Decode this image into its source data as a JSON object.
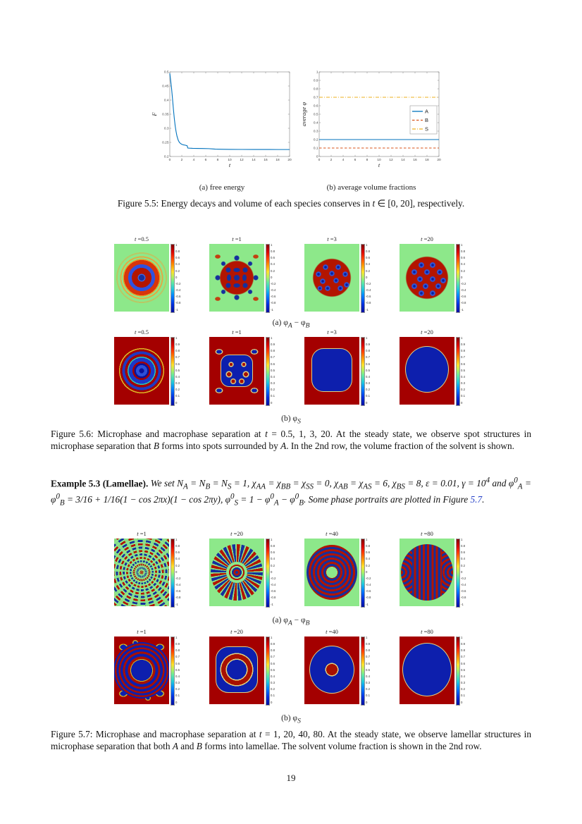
{
  "figure_5_5": {
    "subcaption_a": "(a)  free energy",
    "subcaption_b": "(b)  average volume fractions",
    "caption_html": "Figure 5.5: Energy decays and volume of each species conserves in <i>t</i> ∈ [0, 20], respectively."
  },
  "chart_data": [
    {
      "type": "line",
      "xlabel": "t",
      "ylabel": "F",
      "xlim": [
        0,
        20
      ],
      "ylim": [
        0.2,
        0.5
      ],
      "xticks": [
        0,
        2,
        4,
        6,
        8,
        10,
        12,
        14,
        16,
        18,
        20
      ],
      "yticks": [
        0.2,
        0.25,
        0.3,
        0.35,
        0.4,
        0.45,
        0.5
      ],
      "grid": false,
      "legend": null,
      "series": [
        {
          "name": "F",
          "color": "#0072BD",
          "dash": "solid",
          "points": [
            [
              0,
              0.495
            ],
            [
              0.15,
              0.468
            ],
            [
              0.3,
              0.44
            ],
            [
              0.45,
              0.405
            ],
            [
              0.6,
              0.368
            ],
            [
              0.75,
              0.335
            ],
            [
              0.9,
              0.308
            ],
            [
              1.05,
              0.288
            ],
            [
              1.2,
              0.272
            ],
            [
              1.4,
              0.258
            ],
            [
              1.6,
              0.25
            ],
            [
              1.8,
              0.246
            ],
            [
              2,
              0.243
            ],
            [
              2.3,
              0.241
            ],
            [
              2.6,
              0.24
            ],
            [
              2.9,
              0.238
            ],
            [
              3,
              0.23
            ],
            [
              3.3,
              0.2295
            ],
            [
              3.8,
              0.229
            ],
            [
              4.5,
              0.2287
            ],
            [
              5.5,
              0.2283
            ],
            [
              6.5,
              0.2278
            ],
            [
              7.2,
              0.2268
            ],
            [
              7.6,
              0.226
            ],
            [
              8,
              0.2257
            ],
            [
              9,
              0.2254
            ],
            [
              10,
              0.2252
            ],
            [
              12,
              0.225
            ],
            [
              14,
              0.2249
            ],
            [
              16,
              0.2248
            ],
            [
              18,
              0.2247
            ],
            [
              20,
              0.2247
            ]
          ]
        }
      ]
    },
    {
      "type": "line",
      "xlabel": "t",
      "ylabel": "average φ",
      "xlim": [
        0,
        20
      ],
      "ylim": [
        0,
        1
      ],
      "xticks": [
        0,
        2,
        4,
        6,
        8,
        10,
        12,
        14,
        16,
        18,
        20
      ],
      "yticks": [
        0,
        0.1,
        0.2,
        0.3,
        0.4,
        0.5,
        0.6,
        0.7,
        0.8,
        0.9,
        1
      ],
      "grid": false,
      "legend": {
        "position": "right",
        "entries": [
          "A",
          "B",
          "S"
        ]
      },
      "series": [
        {
          "name": "A",
          "color": "#0072BD",
          "dash": "solid",
          "points": [
            [
              0,
              0.2
            ],
            [
              20,
              0.2
            ]
          ]
        },
        {
          "name": "B",
          "color": "#D95319",
          "dash": "dashed",
          "points": [
            [
              0,
              0.1
            ],
            [
              20,
              0.1
            ]
          ]
        },
        {
          "name": "S",
          "color": "#EDB120",
          "dash": "dashdot",
          "points": [
            [
              0,
              0.7
            ],
            [
              20,
              0.7
            ]
          ]
        }
      ]
    }
  ],
  "colorbars": {
    "diff": [
      "1",
      "0.8",
      "0.6",
      "0.4",
      "0.2",
      "0",
      "-0.2",
      "-0.4",
      "-0.6",
      "-0.8",
      "-1"
    ],
    "frac": [
      "1",
      "0.9",
      "0.8",
      "0.7",
      "0.6",
      "0.5",
      "0.4",
      "0.3",
      "0.2",
      "0.1",
      "0"
    ]
  },
  "figure_5_6": {
    "row_a": {
      "titles_html": [
        "<i>t</i> =0.5",
        "<i>t</i> =1",
        "<i>t</i> =3",
        "<i>t</i> =20"
      ],
      "subcaption_html": "(a)  φ<sub><i>A</i></sub> − φ<sub><i>B</i></sub>"
    },
    "row_b": {
      "titles_html": [
        "<i>t</i> =0.5",
        "<i>t</i> =1",
        "<i>t</i> =3",
        "<i>t</i> =20"
      ],
      "subcaption_html": "(b)  φ<sub><i>S</i></sub>"
    },
    "caption_html": "Figure 5.6: Microphase and macrophase separation at <i>t</i> = 0.5, 1, 3, 20.  At the steady state, we observe spot structures in microphase separation that <i>B</i> forms into spots surrounded by <i>A</i>.  In the 2nd row, the volume fraction of the solvent is shown."
  },
  "example_5_3": {
    "label": "Example 5.3 (Lamellae).",
    "body_html": "We set N<sub>A</sub> = N<sub>B</sub> = N<sub>S</sub> = 1, χ<sub>AA</sub> = χ<sub>BB</sub> = χ<sub>SS</sub> = 0, χ<sub>AB</sub> = χ<sub>AS</sub> = 6, χ<sub>BS</sub> = 8, ε = 0.01, γ = 10<sup>4</sup> and φ<sup>0</sup><sub>A</sub> = φ<sup>0</sup><sub>B</sub> = 3/16 + 1/16(1 − cos 2πx)(1 − cos 2πy), φ<sup>0</sup><sub>S</sub> = 1 − φ<sup>0</sup><sub>A</sub> − φ<sup>0</sup><sub>B</sub>. Some phase portraits are plotted in Figure <span class=\"ref\" data-name=\"figure-ref-link\" data-interactable=\"true\">5.7</span>."
  },
  "figure_5_7": {
    "row_a": {
      "titles_html": [
        "<i>t</i> =1",
        "<i>t</i> =20",
        "<i>t</i> =40",
        "<i>t</i> =80"
      ],
      "subcaption_html": "(a)  φ<sub><i>A</i></sub> − φ<sub><i>B</i></sub>"
    },
    "row_b": {
      "titles_html": [
        "<i>t</i> =1",
        "<i>t</i> =20",
        "<i>t</i> =40",
        "<i>t</i> =80"
      ],
      "subcaption_html": "(b)  φ<sub><i>S</i></sub>"
    },
    "caption_html": "Figure 5.7: Microphase and macrophase separation at <i>t</i> = 1, 20, 40, 80.  At the steady state, we observe lamellar structures in microphase separation that both <i>A</i> and <i>B</i> forms into lamellae. The solvent volume fraction is shown in the 2nd row."
  },
  "page_number": "19"
}
